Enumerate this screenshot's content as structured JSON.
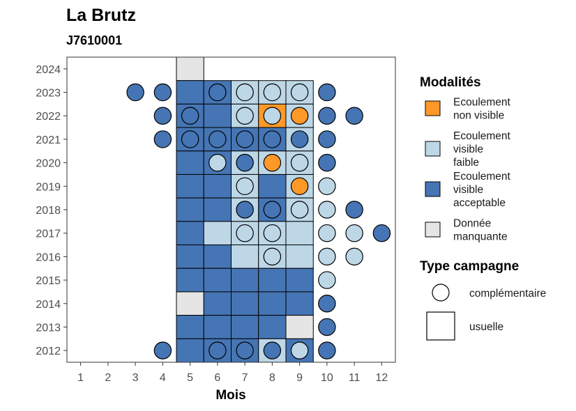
{
  "chart_data": {
    "type": "heatmap",
    "title": "La Brutz",
    "subtitle": "J7610001",
    "xlabel": "Mois",
    "ylabel": "",
    "x_ticks": [
      "1",
      "2",
      "3",
      "4",
      "5",
      "6",
      "7",
      "8",
      "9",
      "10",
      "11",
      "12"
    ],
    "y_ticks": [
      "2012",
      "2013",
      "2014",
      "2015",
      "2016",
      "2017",
      "2018",
      "2019",
      "2020",
      "2021",
      "2022",
      "2023",
      "2024"
    ],
    "xlim": [
      0.5,
      12.5
    ],
    "ylim": [
      2011.5,
      2024.5
    ],
    "grid": false,
    "legend_position": "right",
    "colors": {
      "non_visible": "#FE9929",
      "faible": "#BDD7E7",
      "acceptable": "#4575B4",
      "manquante": "#E5E5E5"
    },
    "legend": {
      "modalites_title": "Modalités",
      "modalites": [
        {
          "key": "non_visible",
          "label_lines": [
            "Ecoulement",
            "non visible"
          ]
        },
        {
          "key": "faible",
          "label_lines": [
            "Ecoulement",
            "visible",
            "faible"
          ]
        },
        {
          "key": "acceptable",
          "label_lines": [
            "Ecoulement",
            "visible",
            "acceptable"
          ]
        },
        {
          "key": "manquante",
          "label_lines": [
            "Donnée",
            "manquante"
          ]
        }
      ],
      "campagne_title": "Type campagne",
      "campagnes": [
        {
          "shape": "circle",
          "label": "complémentaire"
        },
        {
          "shape": "square",
          "label": "usuelle"
        }
      ]
    },
    "usuelle_tiles": [
      {
        "year": 2024,
        "month": 5,
        "value": "manquante"
      },
      {
        "year": 2023,
        "month": 5,
        "value": "acceptable"
      },
      {
        "year": 2023,
        "month": 6,
        "value": "acceptable"
      },
      {
        "year": 2023,
        "month": 7,
        "value": "faible"
      },
      {
        "year": 2023,
        "month": 8,
        "value": "faible"
      },
      {
        "year": 2023,
        "month": 9,
        "value": "faible"
      },
      {
        "year": 2022,
        "month": 5,
        "value": "acceptable"
      },
      {
        "year": 2022,
        "month": 6,
        "value": "acceptable"
      },
      {
        "year": 2022,
        "month": 7,
        "value": "faible"
      },
      {
        "year": 2022,
        "month": 8,
        "value": "non_visible"
      },
      {
        "year": 2022,
        "month": 9,
        "value": "faible"
      },
      {
        "year": 2021,
        "month": 5,
        "value": "acceptable"
      },
      {
        "year": 2021,
        "month": 6,
        "value": "acceptable"
      },
      {
        "year": 2021,
        "month": 7,
        "value": "acceptable"
      },
      {
        "year": 2021,
        "month": 8,
        "value": "acceptable"
      },
      {
        "year": 2021,
        "month": 9,
        "value": "faible"
      },
      {
        "year": 2020,
        "month": 5,
        "value": "acceptable"
      },
      {
        "year": 2020,
        "month": 6,
        "value": "acceptable"
      },
      {
        "year": 2020,
        "month": 7,
        "value": "faible"
      },
      {
        "year": 2020,
        "month": 8,
        "value": "faible"
      },
      {
        "year": 2020,
        "month": 9,
        "value": "faible"
      },
      {
        "year": 2019,
        "month": 5,
        "value": "acceptable"
      },
      {
        "year": 2019,
        "month": 6,
        "value": "acceptable"
      },
      {
        "year": 2019,
        "month": 7,
        "value": "faible"
      },
      {
        "year": 2019,
        "month": 8,
        "value": "acceptable"
      },
      {
        "year": 2019,
        "month": 9,
        "value": "faible"
      },
      {
        "year": 2018,
        "month": 5,
        "value": "acceptable"
      },
      {
        "year": 2018,
        "month": 6,
        "value": "acceptable"
      },
      {
        "year": 2018,
        "month": 7,
        "value": "faible"
      },
      {
        "year": 2018,
        "month": 8,
        "value": "acceptable"
      },
      {
        "year": 2018,
        "month": 9,
        "value": "faible"
      },
      {
        "year": 2017,
        "month": 5,
        "value": "acceptable"
      },
      {
        "year": 2017,
        "month": 6,
        "value": "faible"
      },
      {
        "year": 2017,
        "month": 7,
        "value": "faible"
      },
      {
        "year": 2017,
        "month": 8,
        "value": "faible"
      },
      {
        "year": 2017,
        "month": 9,
        "value": "faible"
      },
      {
        "year": 2016,
        "month": 5,
        "value": "acceptable"
      },
      {
        "year": 2016,
        "month": 6,
        "value": "acceptable"
      },
      {
        "year": 2016,
        "month": 7,
        "value": "faible"
      },
      {
        "year": 2016,
        "month": 8,
        "value": "faible"
      },
      {
        "year": 2016,
        "month": 9,
        "value": "faible"
      },
      {
        "year": 2015,
        "month": 5,
        "value": "acceptable"
      },
      {
        "year": 2015,
        "month": 6,
        "value": "acceptable"
      },
      {
        "year": 2015,
        "month": 7,
        "value": "acceptable"
      },
      {
        "year": 2015,
        "month": 8,
        "value": "acceptable"
      },
      {
        "year": 2015,
        "month": 9,
        "value": "acceptable"
      },
      {
        "year": 2014,
        "month": 5,
        "value": "manquante"
      },
      {
        "year": 2014,
        "month": 6,
        "value": "acceptable"
      },
      {
        "year": 2014,
        "month": 7,
        "value": "acceptable"
      },
      {
        "year": 2014,
        "month": 8,
        "value": "acceptable"
      },
      {
        "year": 2014,
        "month": 9,
        "value": "acceptable"
      },
      {
        "year": 2013,
        "month": 5,
        "value": "acceptable"
      },
      {
        "year": 2013,
        "month": 6,
        "value": "acceptable"
      },
      {
        "year": 2013,
        "month": 7,
        "value": "acceptable"
      },
      {
        "year": 2013,
        "month": 8,
        "value": "acceptable"
      },
      {
        "year": 2013,
        "month": 9,
        "value": "manquante"
      },
      {
        "year": 2012,
        "month": 5,
        "value": "acceptable"
      },
      {
        "year": 2012,
        "month": 6,
        "value": "acceptable"
      },
      {
        "year": 2012,
        "month": 7,
        "value": "acceptable"
      },
      {
        "year": 2012,
        "month": 8,
        "value": "faible"
      },
      {
        "year": 2012,
        "month": 9,
        "value": "acceptable"
      }
    ],
    "complementaire_points": [
      {
        "year": 2023,
        "month": 3,
        "value": "acceptable"
      },
      {
        "year": 2023,
        "month": 4,
        "value": "acceptable"
      },
      {
        "year": 2023,
        "month": 6,
        "value": "acceptable"
      },
      {
        "year": 2023,
        "month": 7,
        "value": "faible"
      },
      {
        "year": 2023,
        "month": 8,
        "value": "faible"
      },
      {
        "year": 2023,
        "month": 9,
        "value": "faible"
      },
      {
        "year": 2023,
        "month": 10,
        "value": "acceptable"
      },
      {
        "year": 2022,
        "month": 4,
        "value": "acceptable"
      },
      {
        "year": 2022,
        "month": 5,
        "value": "acceptable"
      },
      {
        "year": 2022,
        "month": 7,
        "value": "faible"
      },
      {
        "year": 2022,
        "month": 8,
        "value": "faible"
      },
      {
        "year": 2022,
        "month": 9,
        "value": "non_visible"
      },
      {
        "year": 2022,
        "month": 10,
        "value": "acceptable"
      },
      {
        "year": 2022,
        "month": 11,
        "value": "acceptable"
      },
      {
        "year": 2021,
        "month": 4,
        "value": "acceptable"
      },
      {
        "year": 2021,
        "month": 5,
        "value": "acceptable"
      },
      {
        "year": 2021,
        "month": 6,
        "value": "acceptable"
      },
      {
        "year": 2021,
        "month": 7,
        "value": "acceptable"
      },
      {
        "year": 2021,
        "month": 8,
        "value": "acceptable"
      },
      {
        "year": 2021,
        "month": 9,
        "value": "acceptable"
      },
      {
        "year": 2021,
        "month": 10,
        "value": "acceptable"
      },
      {
        "year": 2020,
        "month": 6,
        "value": "faible"
      },
      {
        "year": 2020,
        "month": 7,
        "value": "acceptable"
      },
      {
        "year": 2020,
        "month": 8,
        "value": "non_visible"
      },
      {
        "year": 2020,
        "month": 9,
        "value": "faible"
      },
      {
        "year": 2020,
        "month": 10,
        "value": "acceptable"
      },
      {
        "year": 2019,
        "month": 7,
        "value": "faible"
      },
      {
        "year": 2019,
        "month": 9,
        "value": "non_visible"
      },
      {
        "year": 2019,
        "month": 10,
        "value": "faible"
      },
      {
        "year": 2018,
        "month": 7,
        "value": "acceptable"
      },
      {
        "year": 2018,
        "month": 8,
        "value": "acceptable"
      },
      {
        "year": 2018,
        "month": 9,
        "value": "faible"
      },
      {
        "year": 2018,
        "month": 10,
        "value": "faible"
      },
      {
        "year": 2018,
        "month": 11,
        "value": "acceptable"
      },
      {
        "year": 2017,
        "month": 7,
        "value": "faible"
      },
      {
        "year": 2017,
        "month": 8,
        "value": "faible"
      },
      {
        "year": 2017,
        "month": 10,
        "value": "faible"
      },
      {
        "year": 2017,
        "month": 11,
        "value": "faible"
      },
      {
        "year": 2017,
        "month": 12,
        "value": "acceptable"
      },
      {
        "year": 2016,
        "month": 8,
        "value": "faible"
      },
      {
        "year": 2016,
        "month": 10,
        "value": "faible"
      },
      {
        "year": 2016,
        "month": 11,
        "value": "faible"
      },
      {
        "year": 2015,
        "month": 10,
        "value": "faible"
      },
      {
        "year": 2014,
        "month": 10,
        "value": "acceptable"
      },
      {
        "year": 2013,
        "month": 10,
        "value": "acceptable"
      },
      {
        "year": 2012,
        "month": 4,
        "value": "acceptable"
      },
      {
        "year": 2012,
        "month": 6,
        "value": "acceptable"
      },
      {
        "year": 2012,
        "month": 7,
        "value": "acceptable"
      },
      {
        "year": 2012,
        "month": 8,
        "value": "acceptable"
      },
      {
        "year": 2012,
        "month": 9,
        "value": "faible"
      },
      {
        "year": 2012,
        "month": 10,
        "value": "acceptable"
      }
    ]
  }
}
